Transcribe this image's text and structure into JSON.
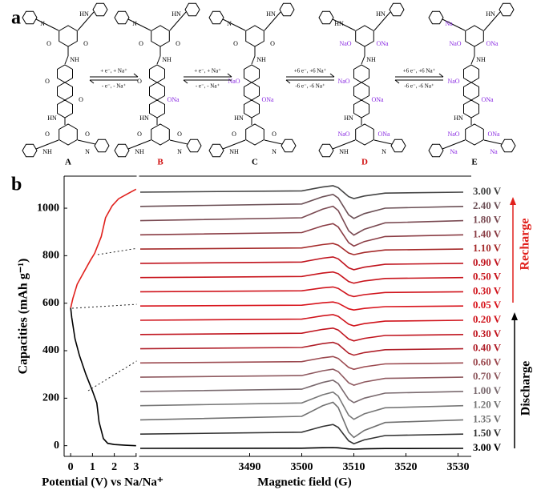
{
  "panel_labels": [
    "a",
    "b"
  ],
  "scheme": {
    "structures": [
      {
        "name": "A",
        "color": "#000000",
        "labels": [
          "N",
          "HN",
          "O",
          "O",
          "NH",
          "O",
          "O",
          "HN",
          "O",
          "O",
          "NH",
          "N"
        ]
      },
      {
        "name": "B",
        "color": "#d01010",
        "labels": [
          "N",
          "HN",
          "O",
          "O",
          "NH",
          "O",
          "ONa",
          "HN",
          "O",
          "O",
          "NH",
          "N"
        ]
      },
      {
        "name": "C",
        "color": "#000000",
        "labels": [
          "N",
          "HN",
          "O",
          "O",
          "NH",
          "NaO",
          "ONa",
          "HN",
          "O",
          "O",
          "NH",
          "N"
        ]
      },
      {
        "name": "D",
        "color": "#d01010",
        "labels": [
          "HN",
          "HN",
          "NaO",
          "ONa",
          "NH",
          "NaO",
          "ONa",
          "HN",
          "NaO",
          "ONa",
          "NH",
          "N"
        ]
      },
      {
        "name": "E",
        "color": "#000000",
        "labels": [
          "Na",
          "HN",
          "NaO",
          "ONa",
          "NH",
          "NaO",
          "ONa",
          "HN",
          "NaO",
          "ONa",
          "Na",
          "Na"
        ]
      }
    ],
    "arrows": [
      {
        "forward": "+ e⁻, + Na⁺",
        "backward": "- e⁻, - Na⁺"
      },
      {
        "forward": "+ e⁻, + Na⁺",
        "backward": "- e⁻, - Na⁺"
      },
      {
        "forward": "+6 e⁻, +6 Na⁺",
        "backward": "-6 e⁻, -6 Na⁺"
      },
      {
        "forward": "+6 e⁻, +6 Na⁺",
        "backward": "-6 e⁻, -6 Na⁺"
      }
    ]
  },
  "chart_data": [
    {
      "type": "line",
      "xlabel": "Potential (V) vs Na/Na⁺",
      "ylabel": "Capacities (mAh g⁻¹)",
      "xlim": [
        -0.3,
        3.08
      ],
      "xticks": [
        0,
        1,
        2,
        3
      ],
      "ylim": [
        -45,
        1135
      ],
      "yticks": [
        0,
        200,
        400,
        600,
        800,
        1000
      ],
      "series": [
        {
          "color": "#000000",
          "x": [
            3,
            2.5,
            2,
            1.7,
            1.5,
            1.3,
            1.2,
            1.0,
            0.7,
            0.4,
            0.2,
            0.05,
            0
          ],
          "values": [
            0,
            2,
            5,
            10,
            30,
            100,
            180,
            230,
            300,
            380,
            450,
            540,
            580
          ]
        },
        {
          "color": "#e0201c",
          "x": [
            0,
            0.1,
            0.3,
            0.6,
            0.9,
            1.1,
            1.4,
            1.6,
            1.9,
            2.2,
            2.6,
            3
          ],
          "values": [
            580,
            620,
            680,
            730,
            780,
            810,
            880,
            960,
            1010,
            1040,
            1060,
            1080
          ]
        }
      ]
    },
    {
      "type": "stacked-spectra",
      "xlabel": "Magnetic field (G)",
      "xlim": [
        3469,
        3531
      ],
      "xticks": [
        3490,
        3500,
        3510,
        3520,
        3530
      ],
      "annotations": {
        "recharge": "Recharge",
        "discharge": "Discharge"
      },
      "x": [
        3469,
        3500,
        3504,
        3506,
        3507,
        3508,
        3509,
        3510,
        3512,
        3516,
        3531
      ],
      "series": [
        {
          "name": "3.00 V",
          "color": "#444444",
          "values": [
            0,
            1.6,
            6.4,
            8,
            5.6,
            0,
            -5.6,
            -8,
            -4.8,
            -1.2,
            0
          ]
        },
        {
          "name": "2.40 V",
          "color": "#6b4f55",
          "values": [
            0,
            3,
            12,
            15,
            10.5,
            0,
            -10.5,
            -15,
            -9,
            -2.2,
            0
          ]
        },
        {
          "name": "1.80 V",
          "color": "#7a4a52",
          "values": [
            0,
            3.6,
            14.4,
            18,
            12.6,
            0,
            -12.6,
            -18,
            -10.8,
            -2.7,
            0
          ]
        },
        {
          "name": "1.40 V",
          "color": "#8a3c44",
          "values": [
            0,
            2.8,
            11.2,
            14,
            9.8,
            0,
            -9.8,
            -14,
            -8.4,
            -2.1,
            0
          ]
        },
        {
          "name": "1.10 V",
          "color": "#a52a2a",
          "values": [
            0,
            1.4,
            5.6,
            7,
            4.9,
            0,
            -4.9,
            -7,
            -4.2,
            -1.1,
            0
          ]
        },
        {
          "name": "0.90 V",
          "color": "#c0141e",
          "values": [
            0,
            1.6,
            6.4,
            8,
            5.6,
            0,
            -5.6,
            -8,
            -4.8,
            -1.2,
            0
          ]
        },
        {
          "name": "0.50 V",
          "color": "#c8141c",
          "values": [
            0,
            1.4,
            5.6,
            7,
            4.9,
            0,
            -4.9,
            -7,
            -4.2,
            -1.1,
            0
          ]
        },
        {
          "name": "0.30 V",
          "color": "#d0141c",
          "values": [
            0,
            1.2,
            4.8,
            6,
            4.2,
            0,
            -4.2,
            -6,
            -3.6,
            -0.9,
            0
          ]
        },
        {
          "name": "0.05 V",
          "color": "#d8141c",
          "values": [
            0,
            1,
            4,
            5,
            3.5,
            0,
            -3.5,
            -5,
            -3,
            -0.8,
            0
          ]
        },
        {
          "name": "0.20 V",
          "color": "#d0141c",
          "values": [
            0,
            1.4,
            5.6,
            7,
            4.9,
            0,
            -4.9,
            -7,
            -4.2,
            -1.1,
            0
          ]
        },
        {
          "name": "0.30 V",
          "color": "#c0141e",
          "values": [
            0,
            1.6,
            6.4,
            8,
            5.6,
            0,
            -5.6,
            -8,
            -4.8,
            -1.2,
            0
          ]
        },
        {
          "name": "0.40 V",
          "color": "#b0202a",
          "values": [
            0,
            1.6,
            6.4,
            8,
            5.6,
            0,
            -5.6,
            -8,
            -4.8,
            -1.2,
            0
          ]
        },
        {
          "name": "0.60 V",
          "color": "#9c4a50",
          "values": [
            0,
            1.6,
            6.4,
            8,
            5.6,
            0,
            -5.6,
            -8,
            -4.8,
            -1.2,
            0
          ]
        },
        {
          "name": "0.70 V",
          "color": "#8f5a60",
          "values": [
            0,
            2,
            8,
            10,
            7,
            0,
            -7,
            -10,
            -6,
            -1.5,
            0
          ]
        },
        {
          "name": "1.00 V",
          "color": "#7a6a6f",
          "values": [
            0,
            2.8,
            11.2,
            14,
            9.8,
            0,
            -9.8,
            -14,
            -8.4,
            -2.1,
            0
          ]
        },
        {
          "name": "1.20 V",
          "color": "#777777",
          "values": [
            0,
            3.4,
            13.6,
            17,
            11.9,
            0,
            -11.9,
            -17,
            -10.2,
            -2.6,
            0
          ]
        },
        {
          "name": "1.35 V",
          "color": "#707070",
          "values": [
            0,
            4.4,
            17.6,
            22,
            15.4,
            0,
            -15.4,
            -22,
            -13.2,
            -3.3,
            0
          ]
        },
        {
          "name": "1.50 V",
          "color": "#333333",
          "values": [
            0,
            2.4,
            9.6,
            12,
            8.4,
            0,
            -8.4,
            -12,
            -7.2,
            -1.8,
            0
          ]
        },
        {
          "name": "3.00 V",
          "color": "#000000",
          "values": [
            0,
            0.2,
            0.8,
            1,
            0.7,
            0,
            -0.7,
            -1,
            -0.6,
            -0.2,
            0
          ]
        }
      ]
    }
  ]
}
